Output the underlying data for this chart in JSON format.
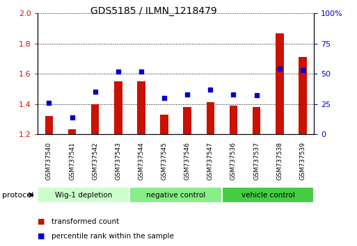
{
  "title": "GDS5185 / ILMN_1218479",
  "samples": [
    "GSM737540",
    "GSM737541",
    "GSM737542",
    "GSM737543",
    "GSM737544",
    "GSM737545",
    "GSM737546",
    "GSM737547",
    "GSM737536",
    "GSM737537",
    "GSM737538",
    "GSM737539"
  ],
  "transformed_count": [
    1.32,
    1.23,
    1.4,
    1.55,
    1.55,
    1.33,
    1.38,
    1.41,
    1.39,
    1.38,
    1.87,
    1.71
  ],
  "percentile_rank": [
    26,
    14,
    35,
    52,
    52,
    30,
    33,
    37,
    33,
    32,
    54,
    53
  ],
  "ylim_left": [
    1.2,
    2.0
  ],
  "ylim_right": [
    0,
    100
  ],
  "yticks_left": [
    1.2,
    1.4,
    1.6,
    1.8,
    2.0
  ],
  "yticks_right": [
    0,
    25,
    50,
    75,
    100
  ],
  "groups": [
    {
      "label": "Wig-1 depletion",
      "start": 0,
      "end": 4,
      "color": "#ccffcc"
    },
    {
      "label": "negative control",
      "start": 4,
      "end": 8,
      "color": "#88ee88"
    },
    {
      "label": "vehicle control",
      "start": 8,
      "end": 12,
      "color": "#44cc44"
    }
  ],
  "bar_color": "#cc1100",
  "dot_color": "#0000cc",
  "bar_bottom": 1.2,
  "bar_width": 0.35,
  "protocol_label": "protocol",
  "axis_color_left": "#cc1100",
  "axis_color_right": "#0000cc",
  "sample_box_color": "#cccccc",
  "bg_color": "#ffffff",
  "grid_linestyle": "dotted",
  "grid_color": "#000000",
  "grid_linewidth": 0.7
}
